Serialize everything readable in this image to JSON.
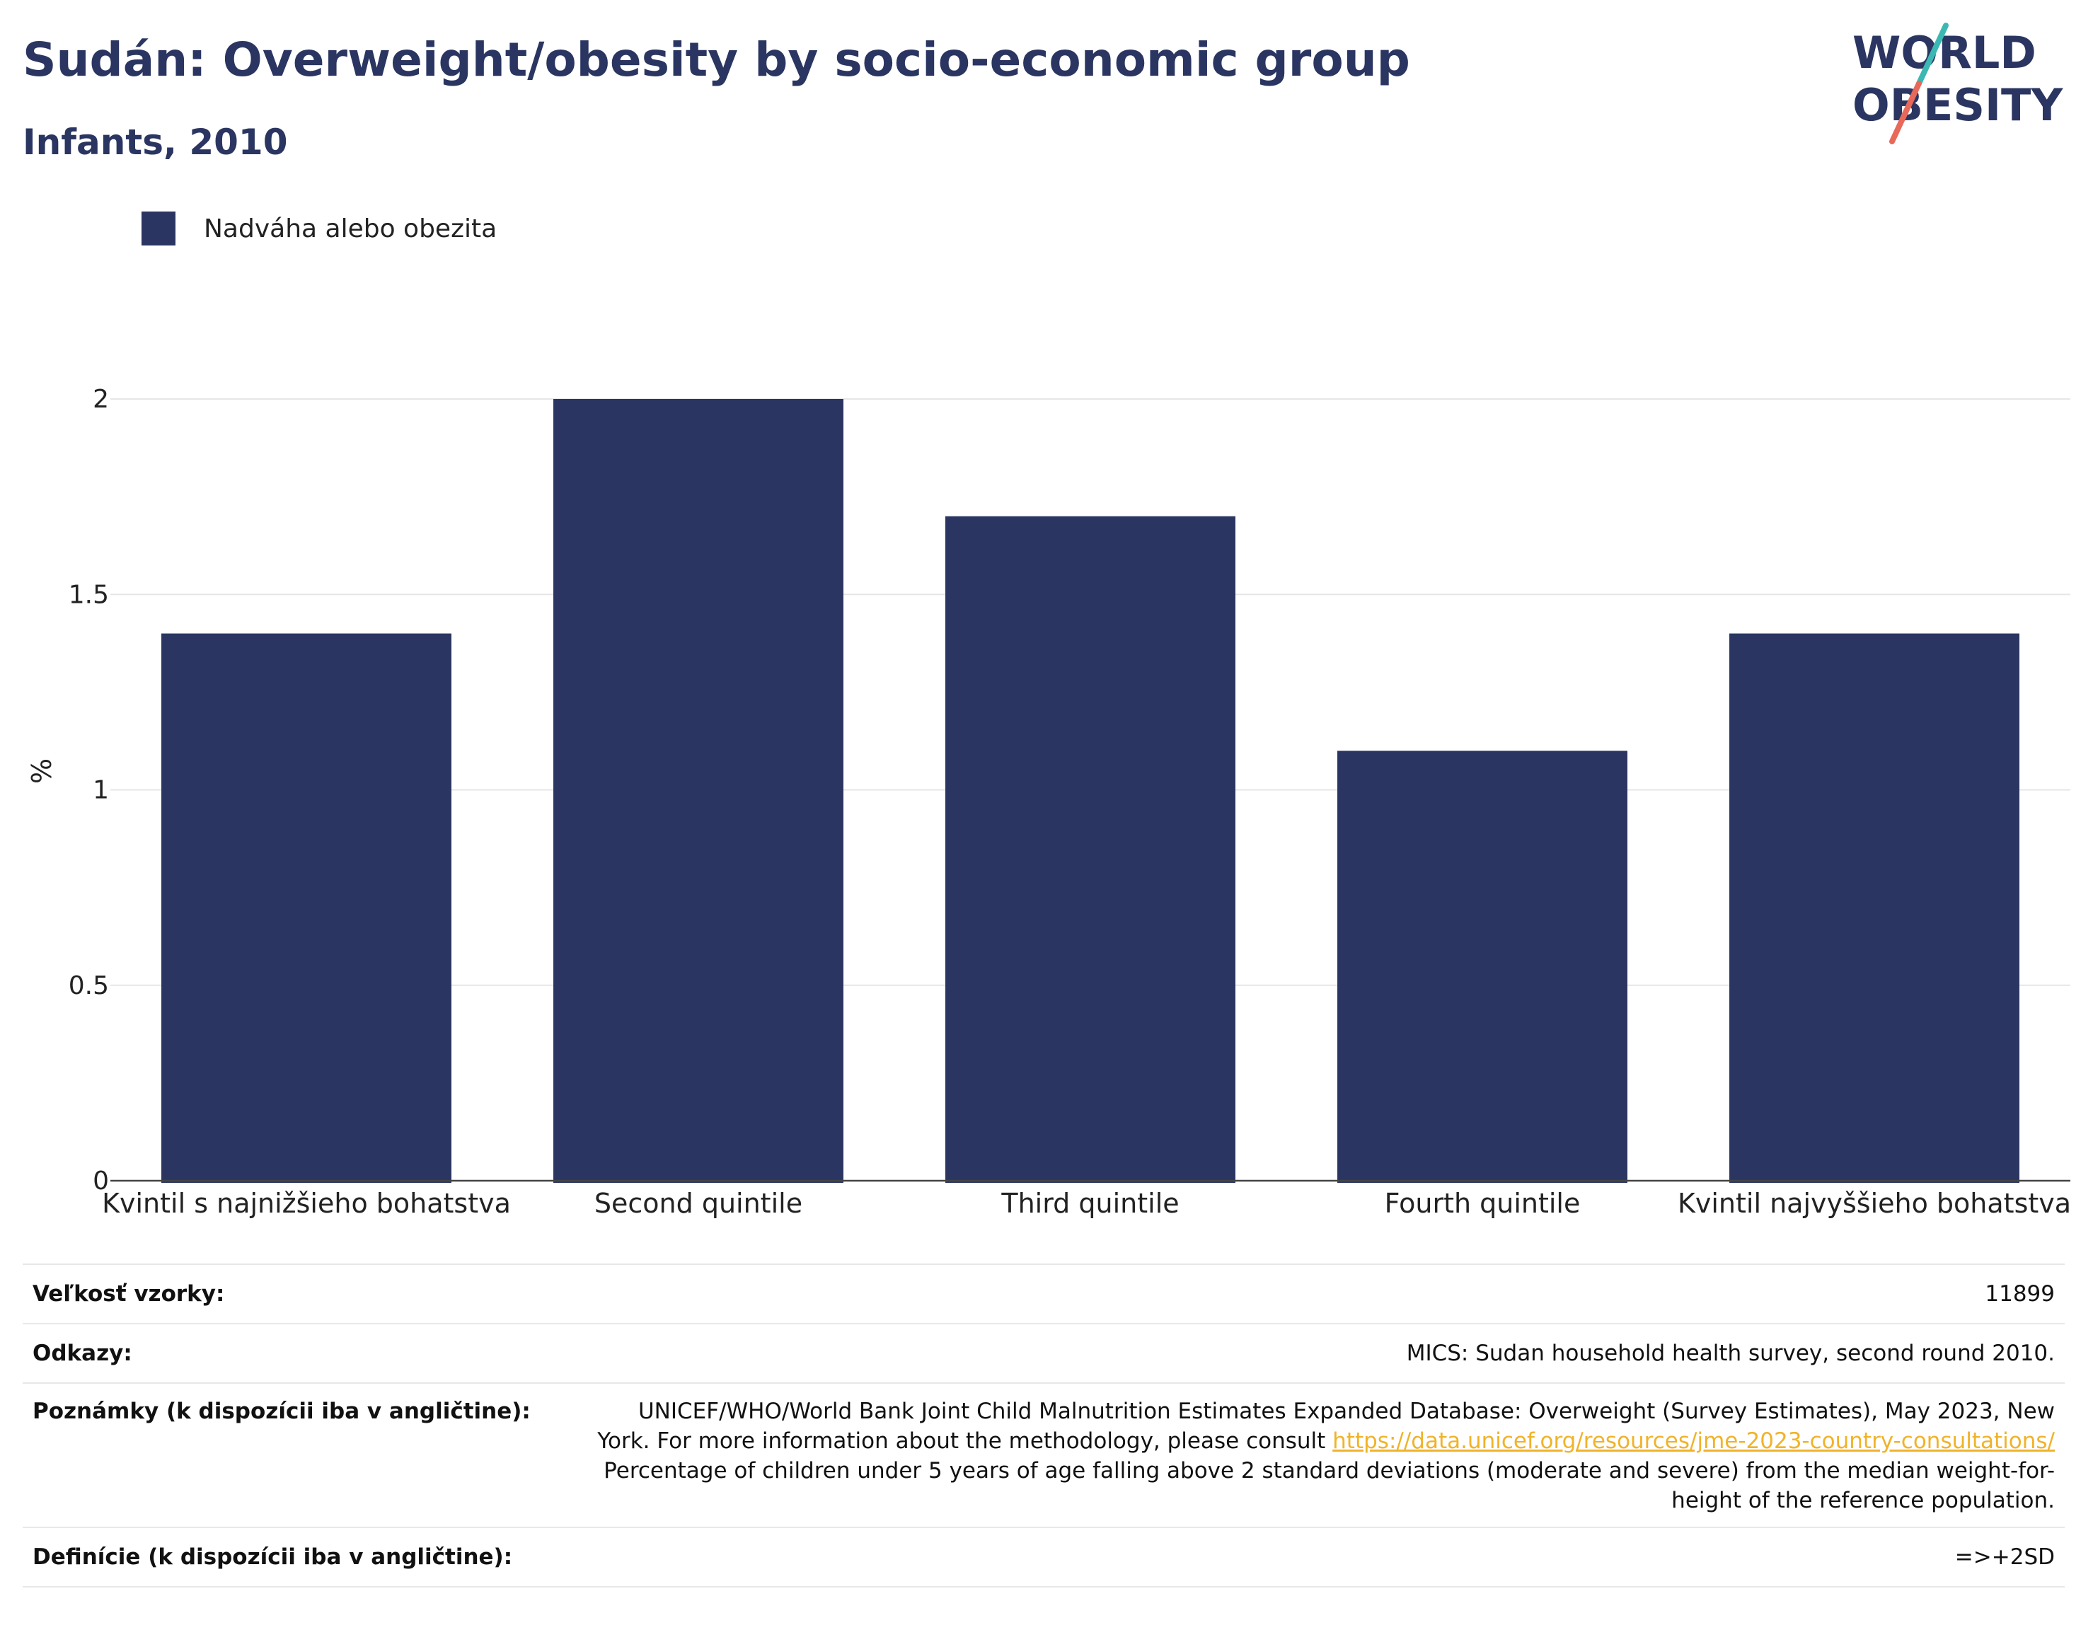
{
  "header": {
    "title": "Sudán: Overweight/obesity by socio-economic group",
    "subtitle": "Infants, 2010"
  },
  "logo": {
    "line1": "WORLD",
    "line2": "OBESITY",
    "colors": {
      "text": "#2a3561",
      "slash_top": "#3cb8b2",
      "slash_bottom": "#e8685a"
    }
  },
  "legend": {
    "label": "Nadváha alebo obezita",
    "color": "#2a3561"
  },
  "chart_data": {
    "type": "bar",
    "categories": [
      "Kvintil s najnižšieho bohatstva",
      "Second quintile",
      "Third quintile",
      "Fourth quintile",
      "Kvintil najvyššieho bohatstva"
    ],
    "series": [
      {
        "name": "Nadváha alebo obezita",
        "values": [
          1.4,
          2.0,
          1.7,
          1.1,
          1.4
        ],
        "color": "#2a3561"
      }
    ],
    "ylabel": "%",
    "ylim": [
      0,
      2.0
    ],
    "yticks": [
      "0",
      "0.5",
      "1",
      "1.5",
      "2"
    ],
    "grid": true,
    "legend_position": "top-left"
  },
  "meta": {
    "sample_size": {
      "label": "Veľkosť vzorky:",
      "value": "11899"
    },
    "references": {
      "label": "Odkazy:",
      "value": "MICS: Sudan household health survey, second round 2010."
    },
    "notes": {
      "label": "Poznámky (k dispozícii iba v angličtine):",
      "text_before": "UNICEF/WHO/World Bank Joint Child Malnutrition Estimates Expanded Database: Overweight (Survey Estimates), May 2023, New York. For more information about the methodology, please consult ",
      "link": "https://data.unicef.org/resources/jme-2023-country-consultations/",
      "text_after": " Percentage of children under 5 years of age falling above 2 standard deviations (moderate and severe) from the median weight-for-height of the reference population."
    },
    "definitions": {
      "label": "Definície (k dispozícii iba v angličtine):",
      "value": "=>+2SD"
    }
  }
}
